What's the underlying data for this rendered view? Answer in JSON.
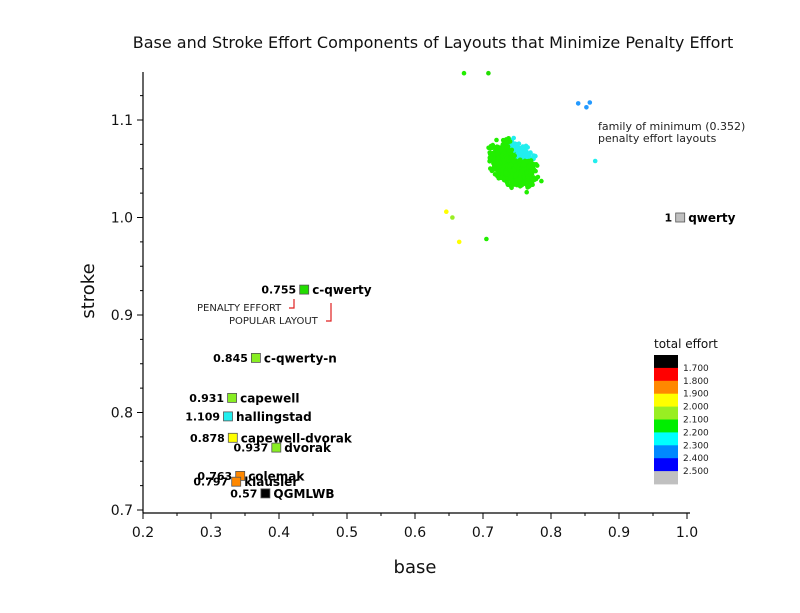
{
  "chart_data": {
    "type": "scatter",
    "title": "Base and Stroke Effort Components of Layouts that Minimize Penalty Effort",
    "xlabel": "base",
    "ylabel": "stroke",
    "xlim": [
      0.2,
      1.0
    ],
    "ylim": [
      0.7,
      1.15
    ],
    "x_ticks": [
      "0.2",
      "0.3",
      "0.4",
      "0.5",
      "0.6",
      "0.7",
      "0.8",
      "0.9",
      "1.0"
    ],
    "y_ticks": [
      "0.7",
      "0.8",
      "0.9",
      "1.0",
      "1.1"
    ],
    "grid": false,
    "points": [
      {
        "name": "qwerty",
        "value": "1",
        "x": 0.99,
        "y": 1.0,
        "color": "#c0c0c0"
      },
      {
        "name": "c-qwerty",
        "value": "0.755",
        "x": 0.437,
        "y": 0.926,
        "color": "#22dd00"
      },
      {
        "name": "c-qwerty-n",
        "value": "0.845",
        "x": 0.366,
        "y": 0.856,
        "color": "#88ee22"
      },
      {
        "name": "capewell",
        "value": "0.931",
        "x": 0.331,
        "y": 0.815,
        "color": "#88ee22"
      },
      {
        "name": "hallingstad",
        "value": "1.109",
        "x": 0.325,
        "y": 0.796,
        "color": "#22eeee"
      },
      {
        "name": "capewell-dvorak",
        "value": "0.878",
        "x": 0.332,
        "y": 0.774,
        "color": "#ffff00"
      },
      {
        "name": "dvorak",
        "value": "0.937",
        "x": 0.396,
        "y": 0.764,
        "color": "#88ee22"
      },
      {
        "name": "colemak",
        "value": "0.763",
        "x": 0.343,
        "y": 0.735,
        "color": "#ff8800"
      },
      {
        "name": "klausler",
        "value": "0.797",
        "x": 0.337,
        "y": 0.729,
        "color": "#ff8800"
      },
      {
        "name": "QGMLWB",
        "value": "0.57",
        "x": 0.38,
        "y": 0.717,
        "color": "#000000"
      }
    ],
    "family_cluster": {
      "label_line1": "family of minimum (0.352)",
      "label_line2": "penalty effort layouts",
      "x_range": [
        0.64,
        0.87
      ],
      "y_range": [
        0.97,
        1.15
      ],
      "regions": [
        {
          "effort": "2.000",
          "color": "#99ee22"
        },
        {
          "effort": "2.100",
          "color": "#22ee00"
        },
        {
          "effort": "2.200",
          "color": "#22eeee"
        },
        {
          "effort": "2.300",
          "color": "#2299ff"
        }
      ]
    },
    "annotations": {
      "penalty_effort": "PENALTY EFFORT",
      "popular_layout": "POPULAR LAYOUT"
    },
    "legend": {
      "title": "total effort",
      "placement": "bottom-right",
      "entries": [
        {
          "label": "1.700",
          "color": "#000000"
        },
        {
          "label": "1.800",
          "color": "#ff0000"
        },
        {
          "label": "1.900",
          "color": "#ff8800"
        },
        {
          "label": "2.000",
          "color": "#ffff00"
        },
        {
          "label": "2.100",
          "color": "#99ee22"
        },
        {
          "label": "2.200",
          "color": "#00ee00"
        },
        {
          "label": "2.300",
          "color": "#00ffff"
        },
        {
          "label": "2.400",
          "color": "#0088ff"
        },
        {
          "label": "2.500",
          "color": "#0000ff"
        },
        {
          "label": "",
          "color": "#c0c0c0"
        }
      ]
    }
  }
}
